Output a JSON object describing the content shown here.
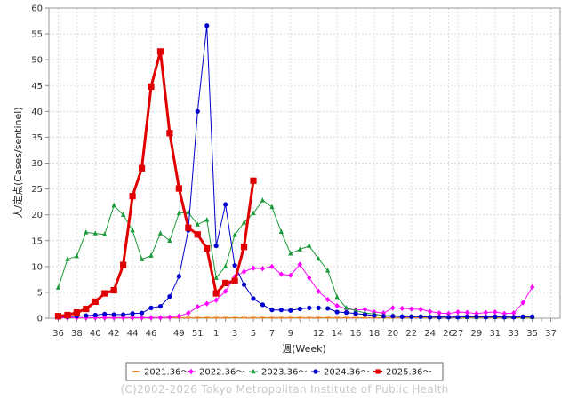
{
  "chart_data": {
    "type": "line",
    "xlabel": "週(Week)",
    "ylabel": "人/定点(Cases/sentinel)",
    "ylim": [
      0,
      60
    ],
    "yticks": [
      0,
      5,
      10,
      15,
      20,
      25,
      30,
      35,
      40,
      45,
      50,
      55,
      60
    ],
    "week_order": [
      36,
      37,
      38,
      39,
      40,
      41,
      42,
      43,
      44,
      45,
      46,
      47,
      48,
      49,
      50,
      51,
      52,
      1,
      2,
      3,
      4,
      5,
      6,
      7,
      8,
      9,
      10,
      11,
      12,
      13,
      14,
      15,
      16,
      17,
      18,
      19,
      20,
      21,
      22,
      23,
      24,
      25,
      26,
      27,
      28,
      29,
      30,
      31,
      32,
      33,
      34,
      35,
      36,
      37
    ],
    "xtick_labels": [
      "36",
      "38",
      "40",
      "42",
      "44",
      "46",
      "49",
      "51",
      "1",
      "3",
      "5",
      "7",
      "9",
      "12",
      "14",
      "16",
      "18",
      "20",
      "22",
      "24",
      "26",
      "27",
      "29",
      "31",
      "33",
      "35",
      "37"
    ],
    "grid": true,
    "legend_position": "bottom",
    "series": [
      {
        "name": "2021.36〜",
        "color": "#f08020",
        "marker": "dash",
        "bold": false,
        "y": [
          0.1,
          0.1,
          0.1,
          0.1,
          0.1,
          0.1,
          0.1,
          0.1,
          0.1,
          0.1,
          0.1,
          0.1,
          0.1,
          0.1,
          0.1,
          0.1,
          0.1,
          0.1,
          0.1,
          0.1,
          0.1,
          0.1,
          0.1,
          0.1,
          0.1,
          0.1,
          0.1,
          0.1,
          0.1,
          0.1,
          0.1,
          0.1,
          0.1,
          0.1,
          0.1,
          0.1,
          0.1,
          0.1,
          0.1,
          0.1,
          0.1,
          0.1,
          0.1,
          0.1,
          0.1,
          0.1,
          0.1,
          0.1,
          0.1,
          0.1,
          0.1,
          0.1
        ]
      },
      {
        "name": "2022.36〜",
        "color": "#ff00ff",
        "marker": "diamond",
        "bold": false,
        "y": [
          0.1,
          0.1,
          0.1,
          0.1,
          0.1,
          0.1,
          0.1,
          0.1,
          0.1,
          0.1,
          0.1,
          0.1,
          0.2,
          0.4,
          1.0,
          2.2,
          2.8,
          3.5,
          5.2,
          8.0,
          9.0,
          9.7,
          9.6,
          10.0,
          8.5,
          8.3,
          10.4,
          7.8,
          5.2,
          3.6,
          2.4,
          1.8,
          1.6,
          1.7,
          1.2,
          1.0,
          2.0,
          1.9,
          1.8,
          1.7,
          1.3,
          1.0,
          0.9,
          1.2,
          1.1,
          0.9,
          1.1,
          1.2,
          0.9,
          1.0,
          3.0,
          6.0
        ]
      },
      {
        "name": "2023.36〜",
        "color": "#1a9a3a",
        "marker": "triangle",
        "bold": false,
        "y": [
          5.9,
          11.4,
          12.0,
          16.6,
          16.4,
          16.2,
          21.8,
          20.0,
          17.0,
          11.4,
          12.1,
          16.4,
          15.0,
          20.3,
          20.5,
          18.1,
          19.0,
          7.8,
          10.0,
          16.1,
          18.5,
          20.3,
          22.8,
          21.5,
          16.7,
          12.5,
          13.3,
          14.0,
          11.5,
          9.2,
          4.1,
          2.0,
          1.5,
          1.0,
          0.8,
          0.5,
          0.5,
          0.4,
          0.3,
          0.3,
          0.3,
          0.2,
          0.2,
          0.2,
          0.2,
          0.2,
          0.2,
          0.2,
          0.2,
          0.2,
          0.2,
          0.2
        ]
      },
      {
        "name": "2024.36〜",
        "color": "#0000cc",
        "marker": "circle",
        "bold": false,
        "y": [
          0.2,
          0.3,
          0.4,
          0.5,
          0.6,
          0.8,
          0.7,
          0.7,
          0.9,
          1.0,
          2.0,
          2.3,
          4.2,
          8.1,
          17.0,
          40.0,
          56.6,
          14.0,
          22.0,
          10.2,
          6.5,
          3.8,
          2.6,
          1.6,
          1.6,
          1.5,
          1.8,
          2.0,
          2.0,
          1.9,
          1.2,
          1.1,
          0.9,
          0.7,
          0.5,
          0.4,
          0.4,
          0.3,
          0.3,
          0.3,
          0.2,
          0.2,
          0.2,
          0.2,
          0.3,
          0.3,
          0.2,
          0.3,
          0.2,
          0.2,
          0.3,
          0.3
        ]
      },
      {
        "name": "2025.36〜",
        "color": "#e00000",
        "marker": "square",
        "bold": true,
        "y": [
          0.4,
          0.6,
          1.1,
          1.8,
          3.2,
          4.8,
          5.4,
          10.3,
          23.6,
          29.0,
          44.8,
          51.6,
          35.8,
          25.1,
          17.5,
          16.2,
          13.5,
          4.8,
          6.8,
          7.2,
          13.8,
          26.6
        ]
      }
    ]
  },
  "credit": "(C)2002-2026 Tokyo Metropolitan Institute of Public Health"
}
